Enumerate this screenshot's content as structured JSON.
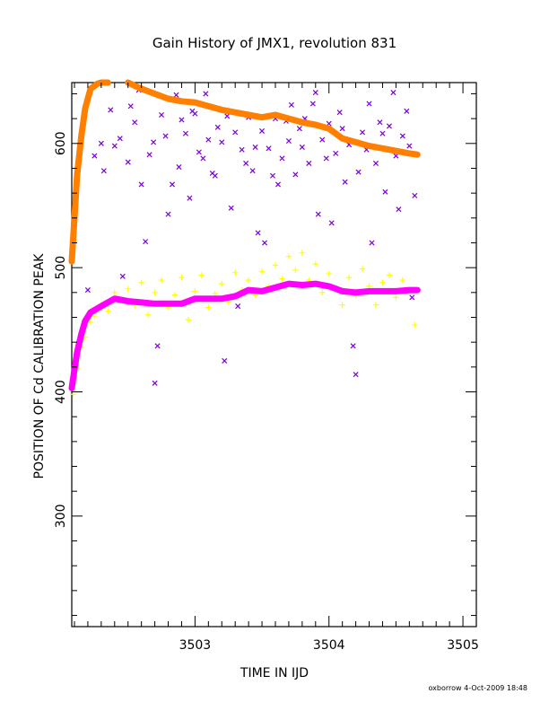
{
  "chart_data": {
    "type": "scatter",
    "title": "Gain History of JMX1, revolution 831",
    "xlabel": "TIME IN IJD",
    "ylabel": "POSITION OF Cd CALIBRATION PEAK",
    "xlim": [
      3502.08,
      3505.1
    ],
    "ylim": [
      211,
      649
    ],
    "xticks": [
      3503,
      3504,
      3505
    ],
    "xtick_labels": [
      "3503",
      "3504",
      "3505"
    ],
    "yticks": [
      300,
      400,
      500,
      600
    ],
    "ytick_labels": [
      "300",
      "400",
      "500",
      "600"
    ],
    "grid": false,
    "footer": "oxborrow  4-Oct-2009 18:48",
    "series": [
      {
        "marker": "x",
        "color": "#7b00d6",
        "points": [
          [
            3502.2,
            482
          ],
          [
            3502.25,
            590
          ],
          [
            3502.3,
            600
          ],
          [
            3502.32,
            578
          ],
          [
            3502.37,
            627
          ],
          [
            3502.4,
            598
          ],
          [
            3502.44,
            604
          ],
          [
            3502.46,
            493
          ],
          [
            3502.5,
            585
          ],
          [
            3502.52,
            630
          ],
          [
            3502.55,
            617
          ],
          [
            3502.58,
            643
          ],
          [
            3502.6,
            567
          ],
          [
            3502.63,
            521
          ],
          [
            3502.66,
            591
          ],
          [
            3502.69,
            601
          ],
          [
            3502.7,
            407
          ],
          [
            3502.72,
            437
          ],
          [
            3502.75,
            623
          ],
          [
            3502.78,
            606
          ],
          [
            3502.8,
            543
          ],
          [
            3502.83,
            567
          ],
          [
            3502.86,
            639
          ],
          [
            3502.88,
            581
          ],
          [
            3502.9,
            619
          ],
          [
            3502.93,
            608
          ],
          [
            3502.96,
            556
          ],
          [
            3502.98,
            626
          ],
          [
            3503.0,
            624
          ],
          [
            3503.03,
            593
          ],
          [
            3503.06,
            588
          ],
          [
            3503.08,
            640
          ],
          [
            3503.1,
            603
          ],
          [
            3503.13,
            576
          ],
          [
            3503.15,
            574
          ],
          [
            3503.17,
            613
          ],
          [
            3503.2,
            601
          ],
          [
            3503.22,
            425
          ],
          [
            3503.24,
            622
          ],
          [
            3503.27,
            548
          ],
          [
            3503.3,
            609
          ],
          [
            3503.32,
            469
          ],
          [
            3503.35,
            595
          ],
          [
            3503.38,
            584
          ],
          [
            3503.4,
            621
          ],
          [
            3503.43,
            578
          ],
          [
            3503.45,
            597
          ],
          [
            3503.47,
            528
          ],
          [
            3503.5,
            610
          ],
          [
            3503.52,
            520
          ],
          [
            3503.55,
            596
          ],
          [
            3503.58,
            574
          ],
          [
            3503.6,
            620
          ],
          [
            3503.62,
            567
          ],
          [
            3503.65,
            588
          ],
          [
            3503.68,
            618
          ],
          [
            3503.7,
            602
          ],
          [
            3503.72,
            631
          ],
          [
            3503.75,
            575
          ],
          [
            3503.78,
            612
          ],
          [
            3503.8,
            597
          ],
          [
            3503.82,
            620
          ],
          [
            3503.85,
            584
          ],
          [
            3503.88,
            632
          ],
          [
            3503.9,
            641
          ],
          [
            3503.92,
            543
          ],
          [
            3503.95,
            603
          ],
          [
            3503.98,
            588
          ],
          [
            3504.0,
            616
          ],
          [
            3504.02,
            536
          ],
          [
            3504.05,
            592
          ],
          [
            3504.08,
            625
          ],
          [
            3504.1,
            612
          ],
          [
            3504.12,
            569
          ],
          [
            3504.15,
            599
          ],
          [
            3504.18,
            437
          ],
          [
            3504.2,
            414
          ],
          [
            3504.22,
            577
          ],
          [
            3504.25,
            609
          ],
          [
            3504.28,
            595
          ],
          [
            3504.3,
            632
          ],
          [
            3504.32,
            520
          ],
          [
            3504.35,
            584
          ],
          [
            3504.38,
            617
          ],
          [
            3504.4,
            608
          ],
          [
            3504.42,
            561
          ],
          [
            3504.45,
            614
          ],
          [
            3504.48,
            641
          ],
          [
            3504.5,
            590
          ],
          [
            3504.52,
            547
          ],
          [
            3504.55,
            606
          ],
          [
            3504.58,
            626
          ],
          [
            3504.6,
            598
          ],
          [
            3504.62,
            476
          ],
          [
            3504.64,
            558
          ]
        ]
      },
      {
        "marker": "+",
        "color": "#ffff00",
        "points": [
          [
            3502.09,
            398
          ],
          [
            3502.1,
            407
          ],
          [
            3502.12,
            419
          ],
          [
            3502.15,
            436
          ],
          [
            3502.18,
            444
          ],
          [
            3502.22,
            456
          ],
          [
            3502.25,
            461
          ],
          [
            3502.3,
            470
          ],
          [
            3502.35,
            465
          ],
          [
            3502.4,
            480
          ],
          [
            3502.45,
            474
          ],
          [
            3502.5,
            483
          ],
          [
            3502.55,
            470
          ],
          [
            3502.6,
            488
          ],
          [
            3502.65,
            462
          ],
          [
            3502.7,
            480
          ],
          [
            3502.75,
            490
          ],
          [
            3502.8,
            468
          ],
          [
            3502.85,
            478
          ],
          [
            3502.9,
            492
          ],
          [
            3502.95,
            458
          ],
          [
            3503.0,
            481
          ],
          [
            3503.05,
            494
          ],
          [
            3503.1,
            468
          ],
          [
            3503.15,
            479
          ],
          [
            3503.2,
            487
          ],
          [
            3503.25,
            472
          ],
          [
            3503.3,
            496
          ],
          [
            3503.35,
            482
          ],
          [
            3503.4,
            490
          ],
          [
            3503.45,
            478
          ],
          [
            3503.5,
            497
          ],
          [
            3503.55,
            485
          ],
          [
            3503.6,
            502
          ],
          [
            3503.65,
            491
          ],
          [
            3503.7,
            509
          ],
          [
            3503.75,
            498
          ],
          [
            3503.8,
            512
          ],
          [
            3503.85,
            490
          ],
          [
            3503.9,
            503
          ],
          [
            3503.95,
            480
          ],
          [
            3504.0,
            495
          ],
          [
            3504.05,
            484
          ],
          [
            3504.1,
            470
          ],
          [
            3504.15,
            492
          ],
          [
            3504.2,
            478
          ],
          [
            3504.25,
            499
          ],
          [
            3504.3,
            485
          ],
          [
            3504.35,
            470
          ],
          [
            3504.4,
            488
          ],
          [
            3504.45,
            494
          ],
          [
            3504.5,
            476
          ],
          [
            3504.55,
            490
          ],
          [
            3504.6,
            482
          ],
          [
            3504.64,
            454
          ]
        ]
      },
      {
        "marker": "line",
        "color": "#ff7f00",
        "points": [
          [
            3502.08,
            505
          ],
          [
            3502.1,
            540
          ],
          [
            3502.12,
            575
          ],
          [
            3502.15,
            605
          ],
          [
            3502.18,
            628
          ],
          [
            3502.22,
            644
          ],
          [
            3502.27,
            648
          ],
          [
            3502.3,
            649
          ],
          [
            3502.35,
            649
          ]
        ]
      },
      {
        "marker": "line",
        "color": "#ff7f00",
        "points": [
          [
            3502.5,
            649
          ],
          [
            3502.6,
            644
          ],
          [
            3502.7,
            640
          ],
          [
            3502.8,
            636
          ],
          [
            3502.9,
            634
          ],
          [
            3503.0,
            633
          ],
          [
            3503.1,
            630
          ],
          [
            3503.2,
            627
          ],
          [
            3503.3,
            625
          ],
          [
            3503.4,
            623
          ],
          [
            3503.5,
            621
          ],
          [
            3503.6,
            623
          ],
          [
            3503.7,
            620
          ],
          [
            3503.8,
            617
          ],
          [
            3503.9,
            615
          ],
          [
            3504.0,
            612
          ],
          [
            3504.1,
            604
          ],
          [
            3504.2,
            601
          ],
          [
            3504.3,
            598
          ],
          [
            3504.4,
            596
          ],
          [
            3504.5,
            594
          ],
          [
            3504.6,
            592
          ],
          [
            3504.66,
            591
          ]
        ]
      },
      {
        "marker": "line",
        "color": "#ff00ff",
        "points": [
          [
            3502.08,
            403
          ],
          [
            3502.1,
            418
          ],
          [
            3502.12,
            432
          ],
          [
            3502.15,
            446
          ],
          [
            3502.18,
            457
          ],
          [
            3502.22,
            464
          ],
          [
            3502.3,
            469
          ],
          [
            3502.4,
            475
          ],
          [
            3502.5,
            473
          ],
          [
            3502.6,
            472
          ],
          [
            3502.7,
            471
          ],
          [
            3502.8,
            471
          ],
          [
            3502.9,
            471
          ],
          [
            3503.0,
            475
          ],
          [
            3503.1,
            475
          ],
          [
            3503.2,
            475
          ],
          [
            3503.3,
            477
          ],
          [
            3503.4,
            482
          ],
          [
            3503.5,
            481
          ],
          [
            3503.6,
            484
          ],
          [
            3503.7,
            487
          ],
          [
            3503.8,
            486
          ],
          [
            3503.9,
            487
          ],
          [
            3504.0,
            485
          ],
          [
            3504.1,
            481
          ],
          [
            3504.2,
            480
          ],
          [
            3504.3,
            481
          ],
          [
            3504.4,
            481
          ],
          [
            3504.5,
            481
          ],
          [
            3504.6,
            482
          ],
          [
            3504.66,
            482
          ]
        ]
      }
    ]
  }
}
